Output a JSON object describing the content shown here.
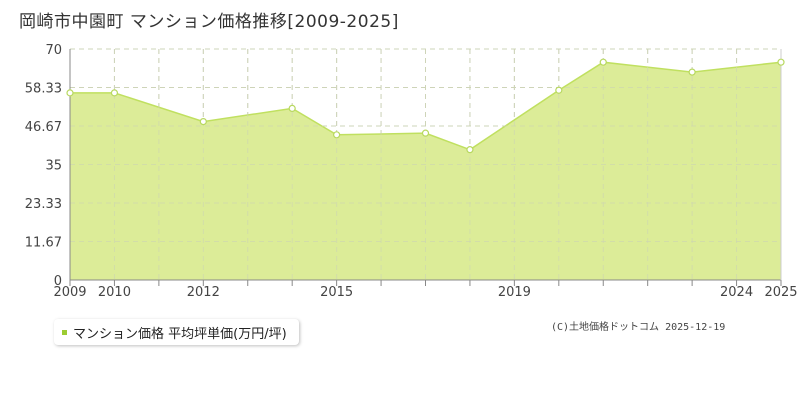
{
  "title": "岡崎市中園町 マンション価格推移[2009-2025]",
  "legend_label": "マンション価格 平均坪単価(万円/坪)",
  "credit": "(C)土地価格ドットコム 2025-12-19",
  "colors": {
    "area_fill": "#dcec98",
    "line": "#c0e060",
    "marker_fill": "#ffffff",
    "marker_stroke": "#b8d860",
    "grid": "#cccccc",
    "legend_swatch": "#9ccc33"
  },
  "chart_data": {
    "type": "area",
    "title": "岡崎市中園町 マンション価格推移[2009-2025]",
    "xlabel": "",
    "ylabel": "",
    "xlim": [
      2009,
      2025
    ],
    "ylim": [
      0,
      70
    ],
    "y_ticks": [
      "0",
      "11.67",
      "23.33",
      "35",
      "46.67",
      "58.33",
      "70"
    ],
    "x_tick_labels": [
      "2009",
      "2010",
      "2012",
      "2015",
      "2019",
      "2024",
      "2025"
    ],
    "grid": true,
    "legend_position": "bottom-left",
    "series": [
      {
        "name": "マンション価格 平均坪単価(万円/坪)",
        "x": [
          2009,
          2010,
          2011,
          2012,
          2013,
          2014,
          2015,
          2016,
          2017,
          2018,
          2019,
          2020,
          2021,
          2022,
          2023,
          2024,
          2025
        ],
        "values": [
          56.7,
          56.7,
          null,
          48.0,
          null,
          52.0,
          44.0,
          null,
          44.5,
          39.5,
          null,
          57.5,
          66.0,
          null,
          63.0,
          null,
          66.0
        ]
      }
    ]
  }
}
